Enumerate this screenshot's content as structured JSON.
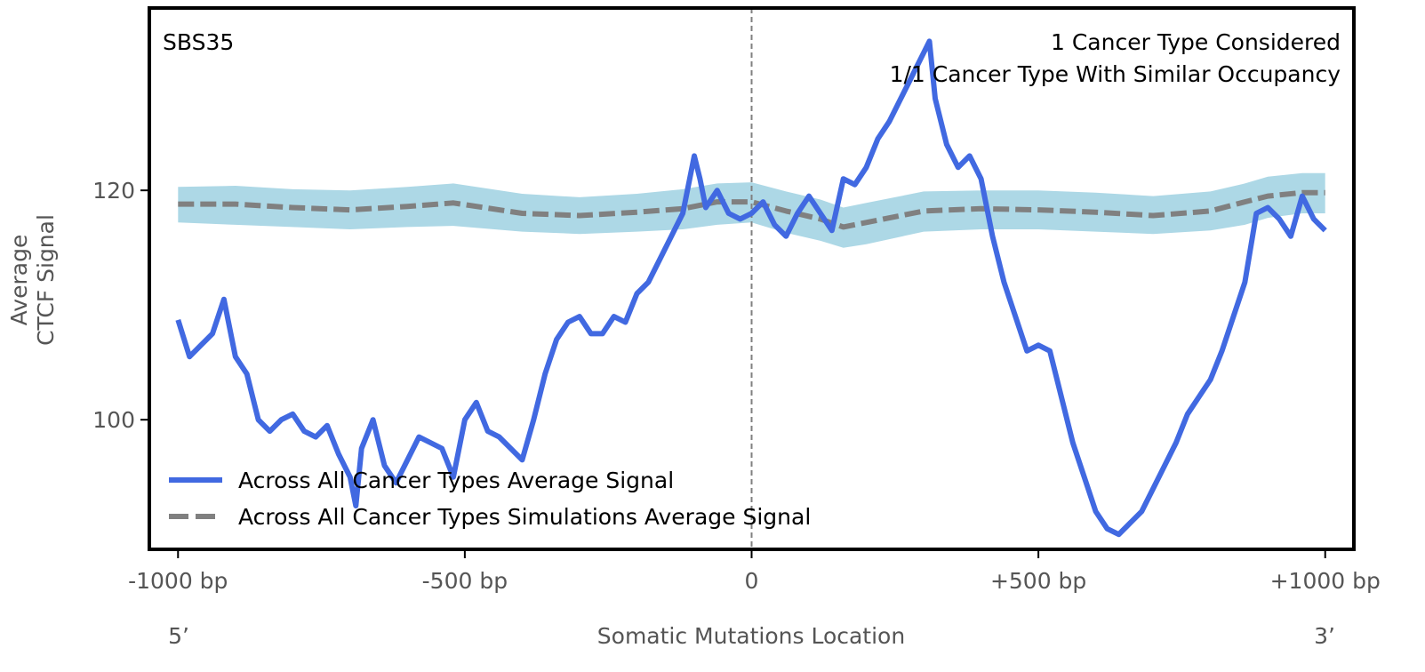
{
  "chart_data": {
    "type": "line",
    "title": "SBS35",
    "annotations": [
      "1 Cancer Type Considered",
      "1/1 Cancer Type With Similar Occupancy"
    ],
    "xlabel": "Somatic Mutations Location",
    "ylabel_line1": "Average",
    "ylabel_line2": "CTCF Signal",
    "end_labels": {
      "left": "5’",
      "right": "3’"
    },
    "xlim": [
      -1050,
      1050
    ],
    "ylim": [
      88.7,
      135.9
    ],
    "x_ticks": [
      {
        "value": -1000,
        "label": "-1000 bp"
      },
      {
        "value": -500,
        "label": "-500 bp"
      },
      {
        "value": 0,
        "label": "0"
      },
      {
        "value": 500,
        "label": "+500 bp"
      },
      {
        "value": 1000,
        "label": "+1000 bp"
      }
    ],
    "y_ticks": [
      {
        "value": 100,
        "label": "100"
      },
      {
        "value": 120,
        "label": "120"
      }
    ],
    "vline_x": 0,
    "legend_position": "lower-left",
    "series": [
      {
        "name": "Across All Cancer Types Average Signal",
        "color": "#4169e1",
        "style": "solid",
        "x": [
          -1000,
          -980,
          -960,
          -940,
          -920,
          -900,
          -880,
          -860,
          -840,
          -820,
          -800,
          -780,
          -760,
          -740,
          -720,
          -700,
          -690,
          -680,
          -660,
          -640,
          -620,
          -600,
          -580,
          -560,
          -540,
          -520,
          -500,
          -480,
          -460,
          -440,
          -420,
          -400,
          -380,
          -360,
          -340,
          -320,
          -300,
          -280,
          -260,
          -240,
          -220,
          -200,
          -180,
          -160,
          -140,
          -120,
          -100,
          -90,
          -80,
          -60,
          -40,
          -20,
          0,
          20,
          40,
          60,
          80,
          100,
          120,
          140,
          160,
          180,
          200,
          220,
          240,
          260,
          280,
          300,
          310,
          320,
          340,
          360,
          380,
          400,
          420,
          440,
          460,
          480,
          500,
          520,
          540,
          560,
          580,
          600,
          620,
          640,
          660,
          680,
          700,
          720,
          740,
          760,
          780,
          800,
          820,
          840,
          860,
          880,
          900,
          920,
          940,
          960,
          980,
          1000
        ],
        "values": [
          108.7,
          105.5,
          106.5,
          107.5,
          110.5,
          105.5,
          104,
          100,
          99,
          100,
          100.5,
          99,
          98.5,
          99.5,
          97,
          95,
          92.5,
          97.5,
          100,
          96,
          94.5,
          96.5,
          98.5,
          98,
          97.5,
          95,
          100,
          101.5,
          99,
          98.5,
          97.5,
          96.5,
          100,
          104,
          107,
          108.5,
          109,
          107.5,
          107.5,
          109,
          108.5,
          111,
          112,
          114,
          116,
          118,
          123,
          121,
          118.5,
          120,
          118,
          117.5,
          118,
          119,
          117,
          116,
          118,
          119.5,
          118,
          116.5,
          121,
          120.5,
          122,
          124.5,
          126,
          128,
          130,
          132,
          133,
          128,
          124,
          122,
          123,
          121,
          116,
          112,
          109,
          106,
          106.5,
          106,
          102,
          98,
          95,
          92,
          90.5,
          90,
          91,
          92,
          94,
          96,
          98,
          100.5,
          102,
          103.5,
          106,
          109,
          112,
          118,
          118.5,
          117.5,
          116,
          119.5,
          117.5,
          116.5
        ]
      },
      {
        "name": "Across All Cancer Types Simulations Average Signal",
        "color": "#808080",
        "style": "dashed",
        "x": [
          -1000,
          -900,
          -800,
          -700,
          -600,
          -520,
          -400,
          -300,
          -200,
          -120,
          -60,
          0,
          60,
          120,
          160,
          200,
          300,
          400,
          500,
          600,
          700,
          800,
          860,
          900,
          960,
          1000
        ],
        "values": [
          118.8,
          118.8,
          118.5,
          118.3,
          118.6,
          118.9,
          118,
          117.8,
          118.1,
          118.4,
          119,
          119,
          118.2,
          117.5,
          116.8,
          117.2,
          118.2,
          118.4,
          118.3,
          118.1,
          117.8,
          118.2,
          119,
          119.5,
          119.8,
          119.8
        ]
      }
    ],
    "band": {
      "color": "#add8e6",
      "x": [
        -1000,
        -900,
        -800,
        -700,
        -600,
        -520,
        -400,
        -300,
        -200,
        -120,
        -60,
        0,
        60,
        120,
        160,
        200,
        300,
        400,
        500,
        600,
        700,
        800,
        860,
        900,
        960,
        1000
      ],
      "lower": [
        117.2,
        117,
        116.8,
        116.6,
        116.8,
        116.9,
        116.4,
        116.2,
        116.4,
        116.6,
        117,
        117.2,
        116.3,
        115.6,
        115,
        115.3,
        116.4,
        116.6,
        116.6,
        116.4,
        116.2,
        116.5,
        117,
        117.6,
        118,
        118
      ],
      "upper": [
        120.3,
        120.4,
        120.1,
        120,
        120.3,
        120.6,
        119.7,
        119.4,
        119.7,
        120.1,
        120.6,
        120.7,
        119.9,
        119.2,
        118.5,
        118.9,
        119.9,
        120,
        120,
        119.8,
        119.5,
        119.9,
        120.6,
        121.2,
        121.5,
        121.5
      ]
    }
  }
}
